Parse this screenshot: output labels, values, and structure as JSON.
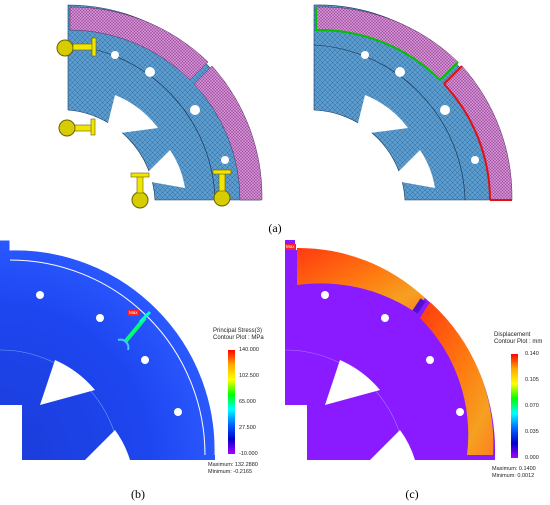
{
  "figure": {
    "captions": {
      "a": "(a)",
      "b": "(b)",
      "c": "(c)"
    },
    "stress": {
      "title_line1": "Principal Stress(3)",
      "title_line2": "Contour Plot : MPa",
      "ticks": [
        "140.000",
        "102.500",
        "65.000",
        "27.500",
        "-10.000"
      ],
      "maximum": "Maximum: 132.2880",
      "minimum": "Minimum: -0.2165",
      "max_tag": "Max",
      "color_stops": [
        "#ff0000",
        "#ffaa00",
        "#ffff00",
        "#00ff00",
        "#00ffff",
        "#0066ff",
        "#0000cc",
        "#aa00ff"
      ]
    },
    "displacement": {
      "title_line1": "Displacement",
      "title_line2": "Contour Plot : mm",
      "ticks": [
        "0.140",
        "0.105",
        "0.070",
        "0.035",
        "0.000"
      ],
      "maximum": "Maximum: 0.1400",
      "minimum": "Minimum: 0.0012",
      "max_tag": "Max",
      "color_stops": [
        "#ff0000",
        "#ffaa00",
        "#ffff00",
        "#00ff00",
        "#00ffff",
        "#0066ff",
        "#0000cc",
        "#aa00ff"
      ]
    },
    "colors": {
      "mesh_blue": "#4a90c8",
      "mesh_pink": "#d98ad6",
      "constraint_yellow": "#e8e000",
      "contact_green": "#00c000",
      "contact_red": "#e01010"
    }
  }
}
